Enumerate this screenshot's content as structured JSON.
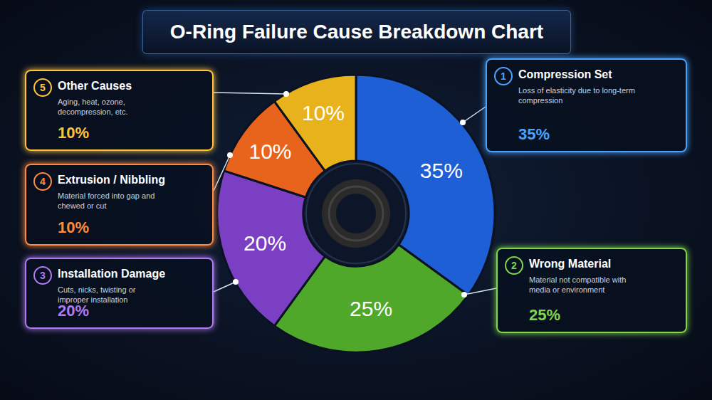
{
  "chart_data": {
    "type": "pie",
    "title": "O-Ring Failure Cause Breakdown Chart",
    "categories": [
      "Compression Set",
      "Wrong Material",
      "Installation Damage",
      "Extrusion / Nibbling",
      "Other Causes"
    ],
    "numbers": [
      "1",
      "2",
      "3",
      "4",
      "5"
    ],
    "descriptions": [
      "Loss of elasticity due to long-term compression",
      "Material not compatible with media or environment",
      "Cuts, nicks, twisting or improper installation",
      "Material forced into gap and chewed or cut",
      "Aging, heat, ozone, decompression, etc."
    ],
    "values": [
      35,
      25,
      20,
      10,
      10
    ],
    "value_labels": [
      "35%",
      "25%",
      "20%",
      "10%",
      "10%"
    ],
    "colors": [
      "#1f5fd6",
      "#4fa82a",
      "#7b3fc4",
      "#e8641c",
      "#e8b21c"
    ],
    "data_labels": true
  }
}
